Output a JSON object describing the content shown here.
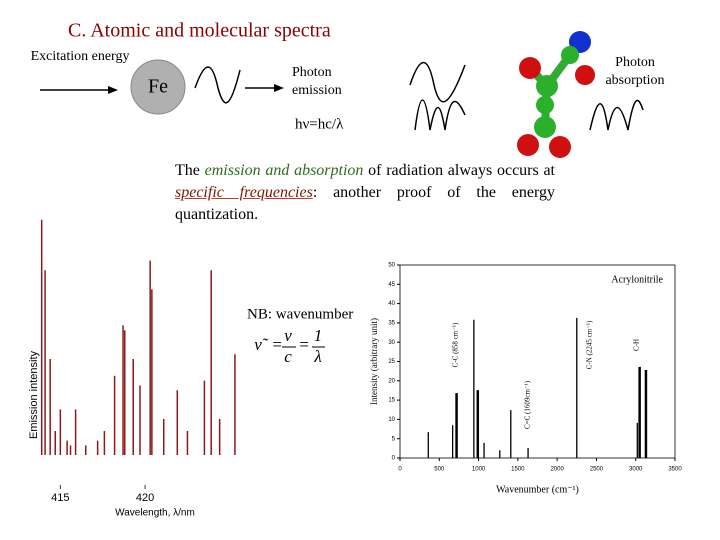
{
  "title": "C. Atomic and molecular spectra",
  "diagram": {
    "excitation": "Excitation energy",
    "atom": "Fe",
    "emission": "Photon emission",
    "absorption": "Photon absorption",
    "relation": "hν=hc/λ"
  },
  "text": {
    "parts": [
      "The ",
      "emission and absorption",
      " of radiation always occurs at ",
      "specific frequencies",
      ": another proof of the energy quantization."
    ]
  },
  "note": "NB: wavenumber",
  "formula": [
    "ν̃",
    "=",
    "ν",
    "c",
    "=",
    "1",
    "λ"
  ],
  "chart_data": [
    {
      "type": "spectrum",
      "ylabel": "Emission intensity",
      "xlabel": "Wavelength, λ/nm",
      "color": "#8b1a1a",
      "x": [
        413.9,
        414.1,
        414.4,
        414.7,
        415.0,
        415.4,
        415.6,
        415.9,
        416.5,
        417.2,
        417.6,
        418.2,
        418.7,
        418.8,
        419.3,
        419.7,
        420.3,
        420.4,
        421.1,
        421.9,
        422.5,
        423.5,
        423.9,
        424.4,
        425.3
      ],
      "values": [
        98,
        77,
        40,
        10,
        19,
        6,
        4,
        19,
        4,
        6,
        10,
        33,
        54,
        52,
        40,
        29,
        81,
        69,
        15,
        27,
        10,
        31,
        77,
        15,
        42
      ],
      "xlim": [
        413.8,
        425.6
      ],
      "ylim": [
        0,
        100
      ],
      "xticks": [
        415,
        420
      ]
    },
    {
      "type": "stick",
      "title": "Acrylonitrile",
      "ylabel": "Intensity (arbitrary unit)",
      "xlabel": "Wavenumber (cm⁻¹)",
      "color": "#000000",
      "x": [
        360,
        670,
        720,
        940,
        990,
        1070,
        1270,
        1410,
        1630,
        2250,
        3020,
        3050,
        3130
      ],
      "values": [
        6.7,
        8.5,
        16.8,
        35.8,
        17.6,
        3.9,
        2,
        12.4,
        2.6,
        36.3,
        9.1,
        23.6,
        22.8
      ],
      "xlim": [
        0,
        3500
      ],
      "ylim": [
        0,
        50
      ],
      "xticks": [
        0,
        500,
        1000,
        1500,
        2000,
        2500,
        3000,
        3500
      ],
      "yticks": [
        0,
        5,
        10,
        15,
        20,
        25,
        30,
        35,
        40,
        45,
        50
      ],
      "annotations": [
        "C-C (858 cm⁻¹)",
        "C=C (1609cm⁻¹)",
        "C-N (2245 cm⁻¹)",
        "C-H"
      ]
    }
  ]
}
